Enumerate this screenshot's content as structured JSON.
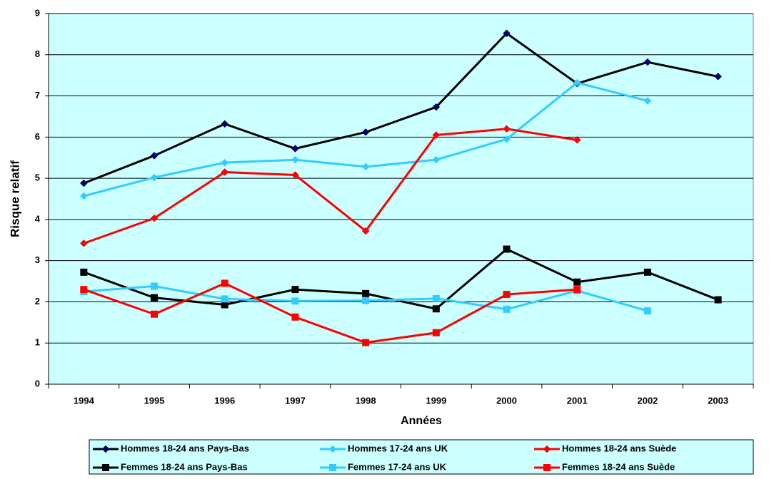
{
  "chart_data": {
    "type": "line",
    "x_label": "Années",
    "y_label": "Risque relatif",
    "categories": [
      "1994",
      "1995",
      "1996",
      "1997",
      "1998",
      "1999",
      "2000",
      "2001",
      "2002",
      "2003"
    ],
    "ylim": [
      0,
      9
    ],
    "yticks": [
      0,
      1,
      2,
      3,
      4,
      5,
      6,
      7,
      8,
      9
    ],
    "grid": true,
    "plot_background": "#ccffff",
    "legend": "bottom",
    "series": [
      {
        "name": "Hommes 18-24 ans Pays-Bas",
        "color": "#000000",
        "marker_color": "#000066",
        "marker": "diamond",
        "values": [
          4.88,
          5.55,
          6.32,
          5.72,
          6.12,
          6.73,
          8.52,
          7.3,
          7.82,
          7.47
        ]
      },
      {
        "name": "Hommes 17-24 ans UK",
        "color": "#33ccff",
        "marker_color": "#33ccff",
        "marker": "diamond",
        "values": [
          4.57,
          5.02,
          5.38,
          5.45,
          5.28,
          5.45,
          5.95,
          7.32,
          6.88,
          null
        ]
      },
      {
        "name": "Hommes 18-24 ans Suède",
        "color": "#ff0000",
        "marker_color": "#ff0000",
        "marker": "diamond",
        "values": [
          3.42,
          4.03,
          5.15,
          5.08,
          3.72,
          6.05,
          6.2,
          5.93,
          null,
          null
        ]
      },
      {
        "name": "Femmes 18-24 ans Pays-Bas",
        "color": "#000000",
        "marker_color": "#000000",
        "marker": "square",
        "values": [
          2.72,
          2.1,
          1.93,
          2.3,
          2.2,
          1.83,
          3.28,
          2.48,
          2.72,
          2.05
        ]
      },
      {
        "name": "Femmes 17-24 ans UK",
        "color": "#33ccff",
        "marker_color": "#33ccff",
        "marker": "square",
        "values": [
          2.25,
          2.38,
          2.07,
          2.02,
          2.03,
          2.08,
          1.82,
          2.27,
          1.78,
          null
        ]
      },
      {
        "name": "Femmes 18-24 ans Suède",
        "color": "#ff0000",
        "marker_color": "#ff0000",
        "marker": "square",
        "values": [
          2.3,
          1.7,
          2.45,
          1.63,
          1.01,
          1.25,
          2.18,
          2.3,
          null,
          null
        ]
      }
    ]
  }
}
